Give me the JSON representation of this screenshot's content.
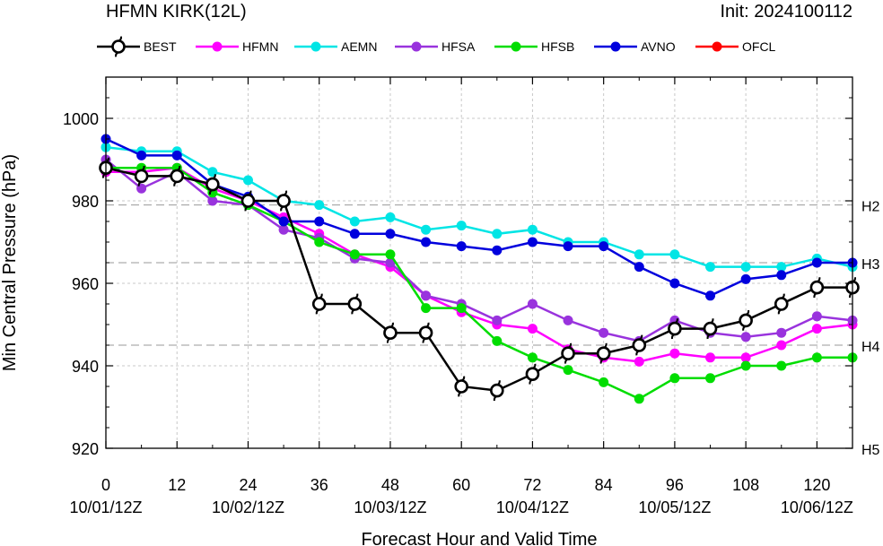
{
  "chart_data": {
    "type": "line",
    "title": "HFMN KIRK(12L)",
    "init_label": "Init: 2024100112",
    "xlabel": "Forecast Hour and Valid Time",
    "ylabel": "Min Central Pressure (hPa)",
    "xlim": [
      0,
      126
    ],
    "ylim": [
      920,
      1010
    ],
    "grid": true,
    "legend_position": "top",
    "x_ticks": [
      0,
      12,
      24,
      36,
      48,
      60,
      72,
      84,
      96,
      108,
      120
    ],
    "x_tick_labels": [
      "0",
      "12",
      "24",
      "36",
      "48",
      "60",
      "72",
      "84",
      "96",
      "108",
      "120"
    ],
    "date_labels": [
      {
        "x": 0,
        "label": "10/01/12Z"
      },
      {
        "x": 24,
        "label": "10/02/12Z"
      },
      {
        "x": 48,
        "label": "10/03/12Z"
      },
      {
        "x": 72,
        "label": "10/04/12Z"
      },
      {
        "x": 96,
        "label": "10/05/12Z"
      },
      {
        "x": 120,
        "label": "10/06/12Z"
      }
    ],
    "y_ticks": [
      920,
      940,
      960,
      980,
      1000
    ],
    "y_tick_labels": [
      "920",
      "940",
      "960",
      "980",
      "1000"
    ],
    "reference_lines": [
      {
        "y": 979,
        "label": "H2"
      },
      {
        "y": 965,
        "label": "H3"
      },
      {
        "y": 945,
        "label": "H4"
      },
      {
        "y": 920,
        "label": "H5"
      }
    ],
    "series": [
      {
        "name": "BEST",
        "color": "#000000",
        "marker": "hurricane-icon",
        "x": [
          0,
          6,
          12,
          18,
          24,
          30,
          36,
          42,
          48,
          54,
          60,
          66,
          72,
          78,
          84,
          90,
          96,
          102,
          108,
          114,
          120,
          126
        ],
        "y": [
          988,
          986,
          986,
          984,
          980,
          980,
          955,
          955,
          948,
          948,
          935,
          934,
          938,
          943,
          943,
          945,
          949,
          949,
          951,
          955,
          959,
          959
        ]
      },
      {
        "name": "HFMN",
        "color": "#ff00ff",
        "marker": "circle",
        "x": [
          0,
          6,
          12,
          18,
          24,
          30,
          36,
          42,
          48,
          54,
          60,
          66,
          72,
          78,
          84,
          90,
          96,
          102,
          108,
          114,
          120,
          126
        ],
        "y": [
          987,
          987,
          988,
          983,
          980,
          976,
          972,
          967,
          964,
          957,
          953,
          950,
          949,
          944,
          942,
          941,
          943,
          942,
          942,
          945,
          949,
          950
        ]
      },
      {
        "name": "AEMN",
        "color": "#00e5e5",
        "marker": "circle",
        "x": [
          0,
          6,
          12,
          18,
          24,
          30,
          36,
          42,
          48,
          54,
          60,
          66,
          72,
          78,
          84,
          90,
          96,
          102,
          108,
          114,
          120,
          126
        ],
        "y": [
          993,
          992,
          992,
          987,
          985,
          980,
          979,
          975,
          976,
          973,
          974,
          972,
          973,
          970,
          970,
          967,
          967,
          964,
          964,
          964,
          966,
          964
        ]
      },
      {
        "name": "HFSA",
        "color": "#9933dd",
        "marker": "circle",
        "x": [
          0,
          6,
          12,
          18,
          24,
          30,
          36,
          42,
          48,
          54,
          60,
          66,
          72,
          78,
          84,
          90,
          96,
          102,
          108,
          114,
          120,
          126
        ],
        "y": [
          990,
          983,
          987,
          980,
          979,
          973,
          971,
          966,
          965,
          957,
          955,
          951,
          955,
          951,
          948,
          946,
          951,
          948,
          947,
          948,
          952,
          951
        ]
      },
      {
        "name": "HFSB",
        "color": "#00dd00",
        "marker": "circle",
        "x": [
          0,
          6,
          12,
          18,
          24,
          30,
          36,
          42,
          48,
          54,
          60,
          66,
          72,
          78,
          84,
          90,
          96,
          102,
          108,
          114,
          120,
          126
        ],
        "y": [
          988,
          988,
          988,
          982,
          979,
          975,
          970,
          967,
          967,
          954,
          954,
          946,
          942,
          939,
          936,
          932,
          937,
          937,
          940,
          940,
          942,
          942
        ]
      },
      {
        "name": "AVNO",
        "color": "#0000dd",
        "marker": "circle",
        "x": [
          0,
          6,
          12,
          18,
          24,
          30,
          36,
          42,
          48,
          54,
          60,
          66,
          72,
          78,
          84,
          90,
          96,
          102,
          108,
          114,
          120,
          126
        ],
        "y": [
          995,
          991,
          991,
          984,
          981,
          975,
          975,
          972,
          972,
          970,
          969,
          968,
          970,
          969,
          969,
          964,
          960,
          957,
          961,
          962,
          965,
          965
        ]
      },
      {
        "name": "OFCL",
        "color": "#ff0000",
        "marker": "circle",
        "x": [],
        "y": []
      }
    ]
  }
}
